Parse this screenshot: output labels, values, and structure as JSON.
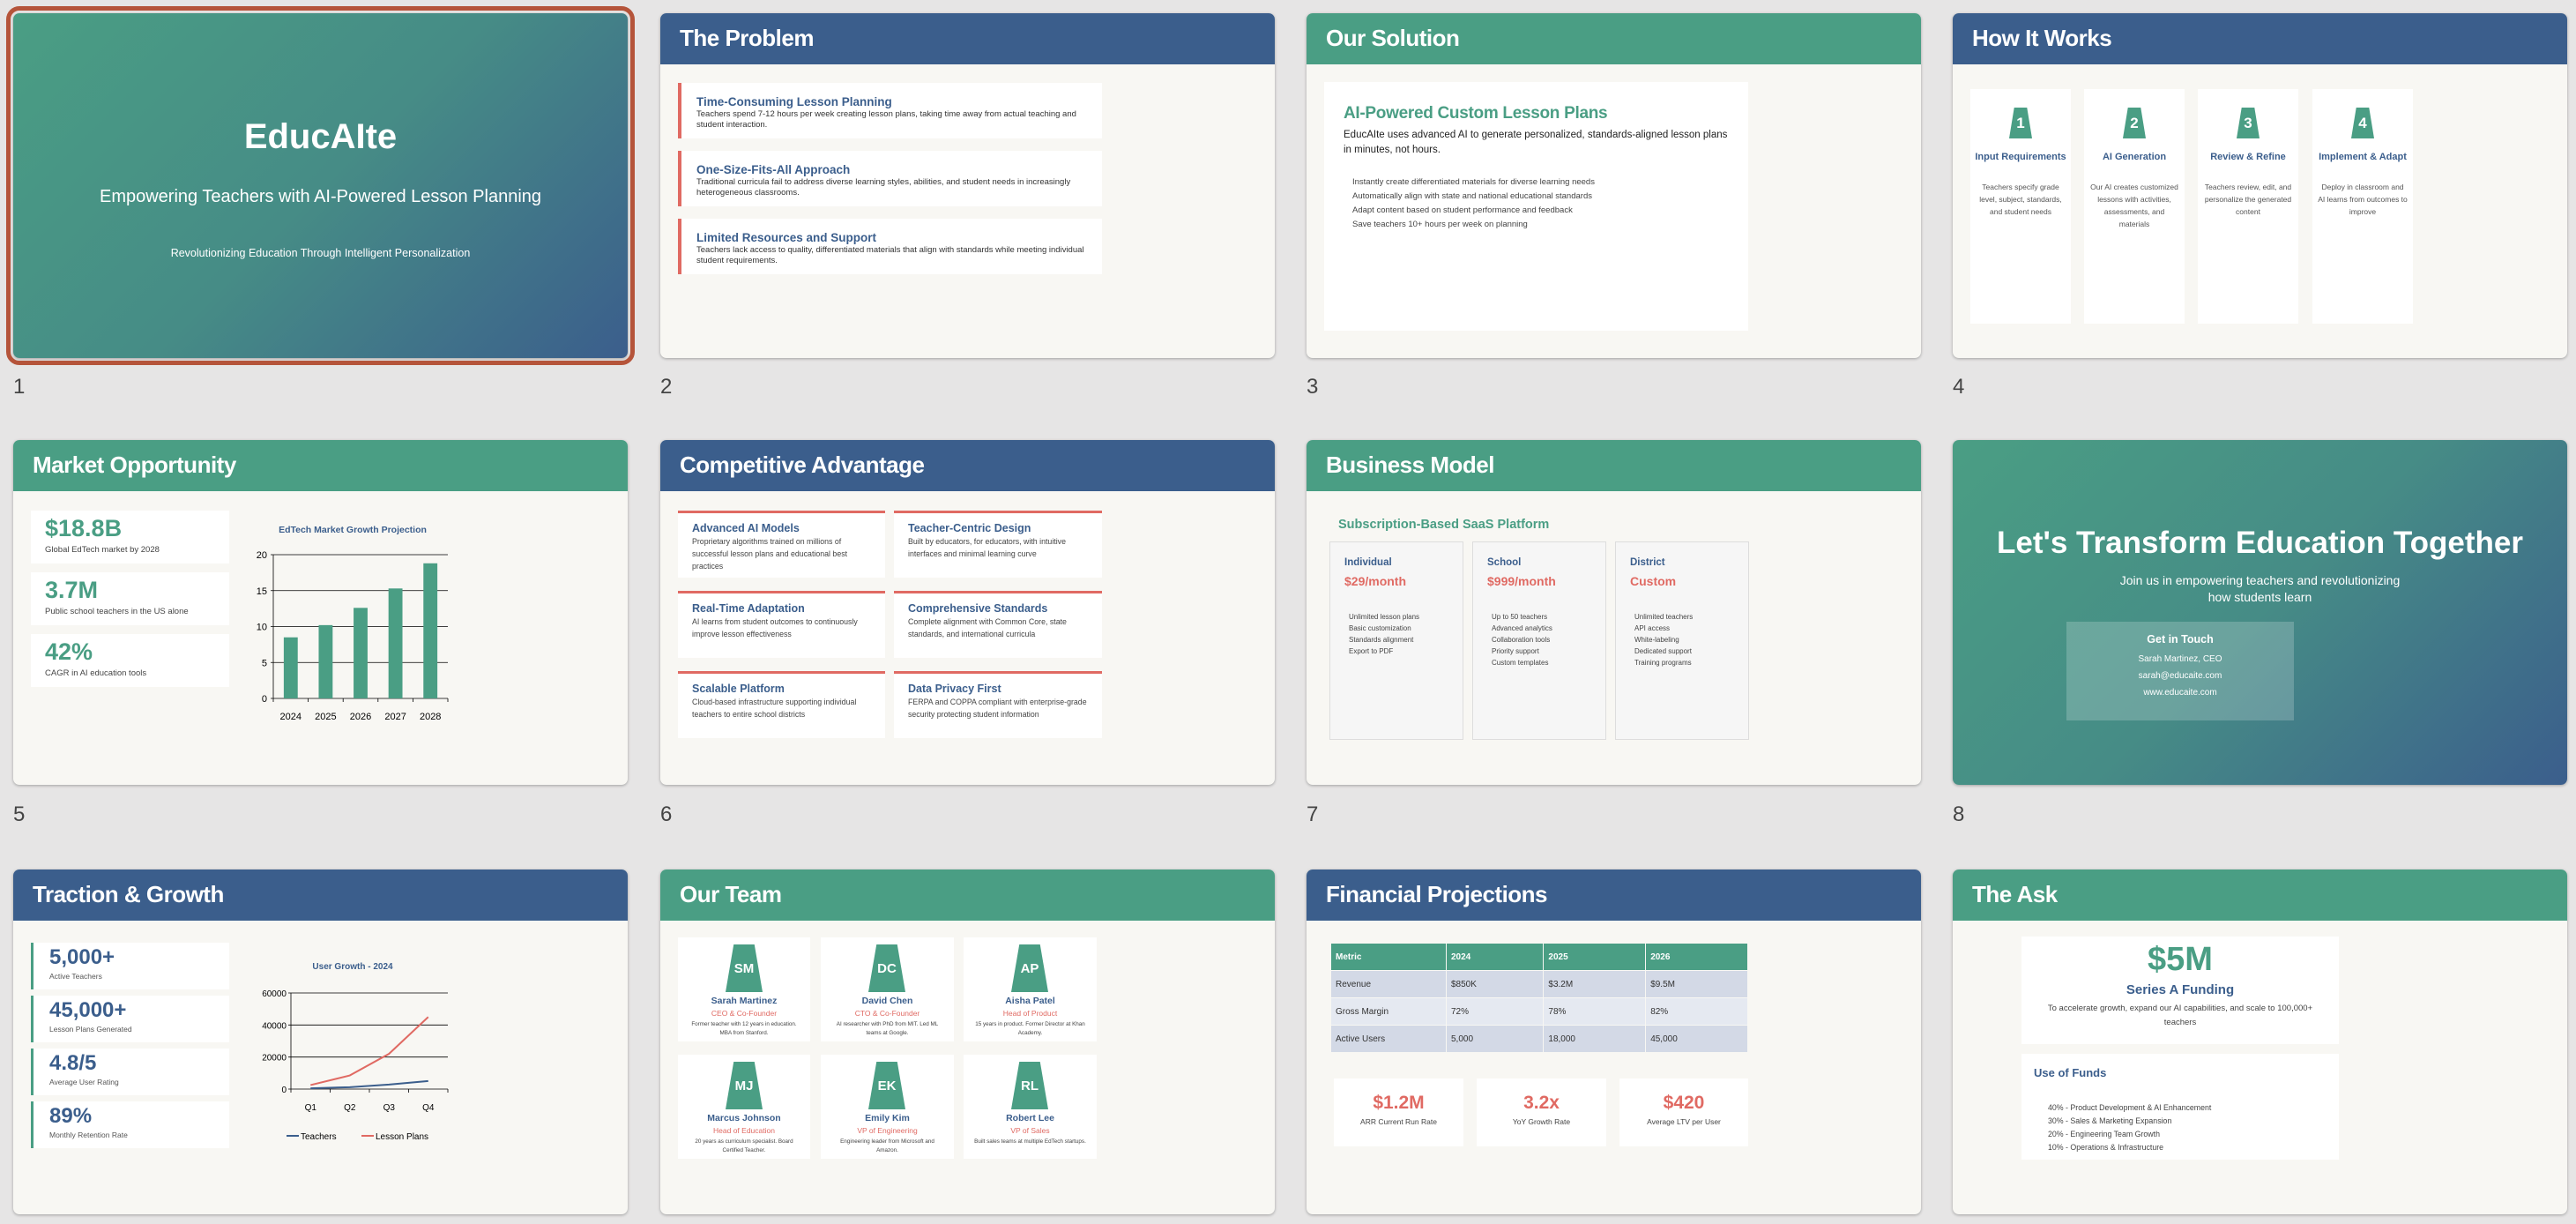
{
  "colors": {
    "blue": "#3b5e8c",
    "green": "#4a9e84",
    "accent_red": "#e06a63",
    "selection": "#b5543a"
  },
  "selected_slide": 1,
  "slide_numbers": [
    "1",
    "2",
    "3",
    "4",
    "5",
    "6",
    "7",
    "8"
  ],
  "s1": {
    "title": "EducAIte",
    "subtitle": "Empowering Teachers with AI-Powered Lesson Planning",
    "tagline": "Revolutionizing Education Through Intelligent Personalization"
  },
  "s2": {
    "title": "The Problem",
    "items": [
      {
        "heading": "Time-Consuming Lesson Planning",
        "text": "Teachers spend 7-12 hours per week creating lesson plans, taking time away from actual teaching and student interaction."
      },
      {
        "heading": "One-Size-Fits-All Approach",
        "text": "Traditional curricula fail to address diverse learning styles, abilities, and student needs in increasingly heterogeneous classrooms."
      },
      {
        "heading": "Limited Resources and Support",
        "text": "Teachers lack access to quality, differentiated materials that align with standards while meeting individual student requirements."
      }
    ]
  },
  "s3": {
    "title": "Our Solution",
    "heading": "AI-Powered Custom Lesson Plans",
    "text": "EducAIte uses advanced AI to generate personalized, standards-aligned lesson plans in minutes, not hours.",
    "bullets": [
      "Instantly create differentiated materials for diverse learning needs",
      "Automatically align with state and national educational standards",
      "Adapt content based on student performance and feedback",
      "Save teachers 10+ hours per week on planning"
    ]
  },
  "s4": {
    "title": "How It Works",
    "steps": [
      {
        "n": "1",
        "heading": "Input Requirements",
        "text": "Teachers specify grade level, subject, standards, and student needs"
      },
      {
        "n": "2",
        "heading": "AI Generation",
        "text": "Our AI creates customized lessons with activities, assessments, and materials"
      },
      {
        "n": "3",
        "heading": "Review & Refine",
        "text": "Teachers review, edit, and personalize the generated content"
      },
      {
        "n": "4",
        "heading": "Implement & Adapt",
        "text": "Deploy in classroom and AI learns from outcomes to improve"
      }
    ]
  },
  "s5": {
    "title": "Market Opportunity",
    "stats": [
      {
        "value": "$18.8B",
        "label": "Global EdTech market by 2028"
      },
      {
        "value": "3.7M",
        "label": "Public school teachers in the US alone"
      },
      {
        "value": "42%",
        "label": "CAGR in AI education tools"
      }
    ]
  },
  "s6": {
    "title": "Competitive Advantage",
    "items": [
      {
        "heading": "Advanced AI Models",
        "text": "Proprietary algorithms trained on millions of successful lesson plans and educational best practices"
      },
      {
        "heading": "Teacher-Centric Design",
        "text": "Built by educators, for educators, with intuitive interfaces and minimal learning curve"
      },
      {
        "heading": "Real-Time Adaptation",
        "text": "AI learns from student outcomes to continuously improve lesson effectiveness"
      },
      {
        "heading": "Comprehensive Standards",
        "text": "Complete alignment with Common Core, state standards, and international curricula"
      },
      {
        "heading": "Scalable Platform",
        "text": "Cloud-based infrastructure supporting individual teachers to entire school districts"
      },
      {
        "heading": "Data Privacy First",
        "text": "FERPA and COPPA compliant with enterprise-grade security protecting student information"
      }
    ]
  },
  "s7": {
    "title": "Business Model",
    "subtitle": "Subscription-Based SaaS Platform",
    "tiers": [
      {
        "name": "Individual",
        "price": "$29/month",
        "features": [
          "Unlimited lesson plans",
          "Basic customization",
          "Standards alignment",
          "Export to PDF"
        ]
      },
      {
        "name": "School",
        "price": "$999/month",
        "features": [
          "Up to 50 teachers",
          "Advanced analytics",
          "Collaboration tools",
          "Priority support",
          "Custom templates"
        ]
      },
      {
        "name": "District",
        "price": "Custom",
        "features": [
          "Unlimited teachers",
          "API access",
          "White-labeling",
          "Dedicated support",
          "Training programs"
        ]
      }
    ]
  },
  "s8": {
    "title": "Let's Transform Education Together",
    "subtitle": "Join us in empowering teachers and revolutionizing how students learn",
    "contact_heading": "Get in Touch",
    "contact_name": "Sarah Martinez, CEO",
    "email": "sarah@educaite.com",
    "website": "www.educaite.com"
  },
  "s9": {
    "title": "Traction & Growth",
    "stats": [
      {
        "value": "5,000+",
        "label": "Active Teachers"
      },
      {
        "value": "45,000+",
        "label": "Lesson Plans Generated"
      },
      {
        "value": "4.8/5",
        "label": "Average User Rating"
      },
      {
        "value": "89%",
        "label": "Monthly Retention Rate"
      }
    ]
  },
  "s10": {
    "title": "Our Team",
    "members": [
      {
        "initials": "SM",
        "name": "Sarah Martinez",
        "role": "CEO & Co-Founder",
        "bio": "Former teacher with 12 years in education. MBA from Stanford."
      },
      {
        "initials": "DC",
        "name": "David Chen",
        "role": "CTO & Co-Founder",
        "bio": "AI researcher with PhD from MIT. Led ML teams at Google."
      },
      {
        "initials": "AP",
        "name": "Aisha Patel",
        "role": "Head of Product",
        "bio": "15 years in product. Former Director at Khan Academy."
      },
      {
        "initials": "MJ",
        "name": "Marcus Johnson",
        "role": "Head of Education",
        "bio": "20 years as curriculum specialist. Board Certified Teacher."
      },
      {
        "initials": "EK",
        "name": "Emily Kim",
        "role": "VP of Engineering",
        "bio": "Engineering leader from Microsoft and Amazon."
      },
      {
        "initials": "RL",
        "name": "Robert Lee",
        "role": "VP of Sales",
        "bio": "Built sales teams at multiple EdTech startups."
      }
    ]
  },
  "s11": {
    "title": "Financial Projections",
    "table": {
      "headers": [
        "Metric",
        "2024",
        "2025",
        "2026"
      ],
      "rows": [
        [
          "Revenue",
          "$850K",
          "$3.2M",
          "$9.5M"
        ],
        [
          "Gross Margin",
          "72%",
          "78%",
          "82%"
        ],
        [
          "Active Users",
          "5,000",
          "18,000",
          "45,000"
        ]
      ]
    },
    "stats": [
      {
        "value": "$1.2M",
        "label": "ARR Current Run Rate"
      },
      {
        "value": "3.2x",
        "label": "YoY Growth Rate"
      },
      {
        "value": "$420",
        "label": "Average LTV per User"
      }
    ]
  },
  "s12": {
    "title": "The Ask",
    "amount": "$5M",
    "round": "Series A Funding",
    "text": "To accelerate growth, expand our AI capabilities, and scale to 100,000+ teachers",
    "funds_heading": "Use of Funds",
    "funds": [
      "40% - Product Development & AI Enhancement",
      "30% - Sales & Marketing Expansion",
      "20% - Engineering Team Growth",
      "10% - Operations & Infrastructure"
    ]
  },
  "chart_data": [
    {
      "type": "bar",
      "title": "EdTech Market Growth Projection",
      "categories": [
        "2024",
        "2025",
        "2026",
        "2027",
        "2028"
      ],
      "values": [
        8.5,
        10.2,
        12.6,
        15.3,
        18.8
      ],
      "ylim": [
        0,
        20
      ],
      "yticks": [
        "0",
        "5",
        "10",
        "15",
        "20"
      ],
      "grid": true,
      "color": "#4a9e84"
    },
    {
      "type": "line",
      "title": "User Growth - 2024",
      "categories": [
        "Q1",
        "Q2",
        "Q3",
        "Q4"
      ],
      "ylim": [
        0,
        60000
      ],
      "yticks": [
        "0",
        "20000",
        "40000",
        "60000"
      ],
      "grid": true,
      "legend": "bottom",
      "series": [
        {
          "name": "Teachers",
          "values": [
            500,
            1200,
            2800,
            5000
          ],
          "color": "#3b5e8c"
        },
        {
          "name": "Lesson Plans",
          "values": [
            2500,
            8500,
            22000,
            45000
          ],
          "color": "#e06a63"
        }
      ]
    }
  ]
}
